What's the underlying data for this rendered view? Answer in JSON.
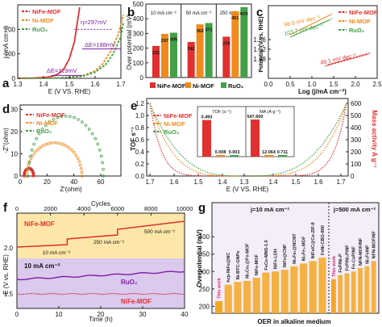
{
  "colors": {
    "nife": "#e0302f",
    "nimof": "#f08a1e",
    "ruo2": "#43a047",
    "mass": "#e0302f",
    "tof": "#222222",
    "accent_text": "#d81b60",
    "prior_bar": "#f5a623",
    "this_work_bar": "#f5a623"
  },
  "chart_data": [
    {
      "id": "a",
      "panel_letter": "a",
      "type": "line",
      "xlabel": "E (V VS. RHE)",
      "ylabel": "j (mA cm⁻²)",
      "xlim": [
        1.3,
        1.7
      ],
      "ylim": [
        0,
        300
      ],
      "xticks": [
        "1.3",
        "1.4",
        "1.5",
        "1.6",
        "1.7"
      ],
      "yticks": [
        "0",
        "100",
        "200"
      ],
      "legend": [
        "NiFe-MOF",
        "Ni-MOF",
        "RuO₂"
      ],
      "series": [
        {
          "name": "NiFe-MOF",
          "x": [
            1.3,
            1.36,
            1.41,
            1.44,
            1.46,
            1.48,
            1.5,
            1.52,
            1.53,
            1.54
          ],
          "y": [
            0,
            1,
            4,
            10,
            20,
            40,
            80,
            150,
            220,
            290
          ]
        },
        {
          "name": "Ni-MOF",
          "x": [
            1.3,
            1.45,
            1.55,
            1.6,
            1.63,
            1.66,
            1.69,
            1.71
          ],
          "y": [
            0,
            1,
            10,
            30,
            60,
            110,
            180,
            260
          ]
        },
        {
          "name": "RuO₂",
          "x": [
            1.3,
            1.45,
            1.55,
            1.6,
            1.64,
            1.67,
            1.7,
            1.71
          ],
          "y": [
            0,
            1,
            8,
            25,
            55,
            100,
            170,
            230
          ]
        }
      ],
      "annotations": [
        "η=297mV",
        "ΔE=188mV",
        "ΔE=119mV"
      ]
    },
    {
      "id": "b",
      "panel_letter": "b",
      "type": "bar",
      "ylabel": "Over potential (mV)",
      "ylim": [
        0,
        500
      ],
      "yticks": [
        "0",
        "100",
        "200",
        "300",
        "400",
        "500"
      ],
      "groups": [
        "10 mA cm⁻²",
        "50 mA cm⁻²",
        "250 mA cm⁻²"
      ],
      "legend": [
        "NiFe-MOF",
        "Ni-MOF",
        "RuO₂"
      ],
      "series": [
        {
          "name": "NiFe-MOF",
          "values": [
            215,
            242,
            278
          ]
        },
        {
          "name": "Ni-MOF",
          "values": [
            297,
            362,
            451
          ]
        },
        {
          "name": "RuO₂",
          "values": [
            305,
            371,
            479
          ]
        }
      ],
      "data_labels": [
        [
          "215",
          "242",
          "278"
        ],
        [
          "297",
          "362",
          "451"
        ],
        [
          "305",
          "371",
          "479"
        ]
      ]
    },
    {
      "id": "c",
      "panel_letter": "c",
      "type": "line",
      "xlabel": "Log (j/mA cm⁻²)",
      "ylabel": "Potential (V vs. RHE)",
      "xlim": [
        0.0,
        2.5
      ],
      "ylim": [
        1.4,
        1.7
      ],
      "xticks": [
        "0.0",
        "0.5",
        "1.0",
        "1.5",
        "2.0",
        "2.5"
      ],
      "yticks": [
        "1.48",
        "1.52",
        "1.56"
      ],
      "legend": [
        "NiFe-MOF",
        "Ni-MOF",
        "RuO₂"
      ],
      "series": [
        {
          "name": "NiFe-MOF",
          "x": [
            1.3,
            2.3
          ],
          "y": [
            1.45,
            1.5
          ]
        },
        {
          "name": "Ni-MOF",
          "x": [
            0.5,
            1.4
          ],
          "y": [
            1.58,
            1.66
          ]
        },
        {
          "name": "RuO₂",
          "x": [
            0.5,
            1.4
          ],
          "y": [
            1.57,
            1.64
          ]
        }
      ],
      "annotations": [
        "49.1 mV dec⁻¹",
        "98.6 mV dec⁻¹",
        "103.7 mV dec⁻¹"
      ]
    },
    {
      "id": "d",
      "panel_letter": "d",
      "type": "scatter",
      "xlabel": "Z'(ohm)",
      "ylabel": "-Z''(ohm)",
      "xlim": [
        0,
        75
      ],
      "ylim": [
        0,
        32
      ],
      "xticks": [
        "0",
        "20",
        "40",
        "60"
      ],
      "yticks": [
        "0",
        "10",
        "20",
        "30"
      ],
      "legend": [
        "NiFe-MOF",
        "Ni-MOF",
        "RuO₂"
      ],
      "series": [
        {
          "name": "NiFe-MOF",
          "arc": {
            "start": 3,
            "end": 10,
            "peak": 3.5
          }
        },
        {
          "name": "Ni-MOF",
          "arc": {
            "start": 5,
            "end": 46,
            "peak": 15
          }
        },
        {
          "name": "RuO₂",
          "arc": {
            "start": 6,
            "end": 62,
            "peak": 27
          }
        }
      ]
    },
    {
      "id": "e",
      "panel_letter": "e",
      "type": "scatter",
      "xlabel": "E (V VS. RHE)",
      "ylabel": "TOF s⁻¹",
      "ylabel_right": "Mass activity A g⁻¹",
      "xticks": [
        "1.7",
        "1.6",
        "1.5",
        "1.4",
        "1.3",
        "1.4",
        "1.5",
        "1.6",
        "1.7"
      ],
      "yticks_left": [
        "0.0",
        "0.2",
        "0.4",
        "0.6",
        "0.8",
        "1.0",
        "1.2"
      ],
      "yticks_right": [
        "0",
        "100",
        "200",
        "300",
        "400",
        "500",
        "600"
      ],
      "legend": [
        "NiFe-MOF",
        "Ni-MOF",
        "RuO₂"
      ],
      "inset_tof": {
        "title": "TOF (s⁻¹)",
        "values": [
          0.493,
          0.008,
          0.003
        ],
        "labels": [
          "0.493",
          "0.008",
          "0.003"
        ]
      },
      "inset_ma": {
        "title": "MA (A g⁻¹)",
        "values": [
          547.6,
          12.064,
          0.711
        ],
        "labels": [
          "547.600",
          "12.064",
          "0.711"
        ]
      }
    },
    {
      "id": "f",
      "panel_letter": "f",
      "type": "line",
      "xlabel": "Time (h)",
      "ylabel": "E (V vs. RHE)",
      "xlabel_top": "Cycles",
      "xlim": [
        0,
        40
      ],
      "xticks": [
        "0",
        "10",
        "20",
        "30",
        "40"
      ],
      "xticks_top": [
        "0",
        "2000",
        "4000",
        "6000",
        "8000",
        "10000"
      ],
      "yticks": [
        "1.5",
        "2.0"
      ],
      "upper_label": "NiFe-MOF",
      "steps": [
        "10 mA cm⁻²",
        "250 mA cm⁻²",
        "500 mA cm⁻²"
      ],
      "lower_label": "10 mA cm⁻²",
      "legend": [
        "RuO₂",
        "NiFe-MOF"
      ]
    },
    {
      "id": "g",
      "panel_letter": "g",
      "type": "bar",
      "xlabel": "OER in alkaline medium",
      "ylabel": "Overpotential (mV)",
      "yticks": [
        "200",
        "250",
        "300",
        "350",
        "400"
      ],
      "ylim": [
        180,
        470
      ],
      "group_titles": [
        "j=10 mA cm⁻²",
        "j=500 mA cm⁻²"
      ],
      "group1": {
        "categories": [
          "This work",
          "hcp-NiFe@NC",
          "Ni-BTC-GNPs",
          "Ni₂Co₁@Fe-MOF",
          "NiFe-MOF",
          "FeCo-MNS-1.0",
          "NiFe-LDH",
          "NiFe@CNF",
          "Ni₃Fe₁@NCNT",
          "Ni₂Fe₁-MOF",
          "NiFe/C@Co-ZIF-8",
          "FeNi-CBO-800"
        ],
        "values": [
          215,
          262,
          270,
          273,
          282,
          297,
          300,
          305,
          315,
          323,
          330,
          340
        ]
      },
      "group2": {
        "categories": [
          "This work",
          "FeP/Ni₂P",
          "FeP/Ni₂P/NF",
          "Fe-CoP/NF",
          "NFN-MOF/NF",
          "Ni₃Fe/NF",
          "NFN-MOF/NF"
        ],
        "values": [
          278,
          290,
          295,
          300,
          310,
          315,
          330
        ]
      }
    }
  ]
}
